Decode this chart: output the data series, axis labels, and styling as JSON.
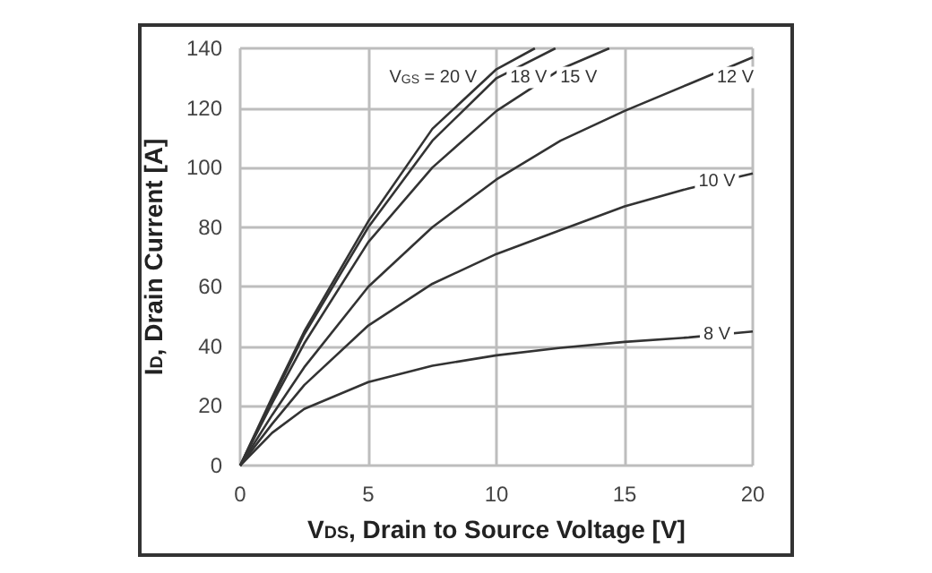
{
  "chart_data": {
    "type": "line",
    "xlabel": "V$_{DS}$, Drain to Source Voltage [V]",
    "ylabel": "I$_{D}$, Drain Current [A]",
    "xlim": [
      0,
      20
    ],
    "ylim": [
      0,
      140
    ],
    "xticks": [
      0,
      5,
      10,
      15,
      20
    ],
    "yticks": [
      0,
      20,
      40,
      60,
      80,
      100,
      120,
      140
    ],
    "grid": true,
    "marker": "none",
    "line_style": "solid",
    "series": [
      {
        "name": "V$_{GS}$ = 20 V",
        "color": "#333333",
        "x": [
          0,
          1.25,
          2.5,
          5,
          7.5,
          10,
          11.5
        ],
        "values": [
          0,
          23,
          45,
          82,
          113,
          133,
          140
        ]
      },
      {
        "name": "18 V",
        "color": "#333333",
        "x": [
          0,
          1.25,
          2.5,
          5,
          7.5,
          10,
          12.3
        ],
        "values": [
          0,
          22,
          44,
          80,
          109,
          130,
          140
        ]
      },
      {
        "name": "15 V",
        "color": "#333333",
        "x": [
          0,
          1.25,
          2.5,
          5,
          7.5,
          10,
          12.5,
          14.4
        ],
        "values": [
          0,
          21,
          41,
          75,
          100,
          119,
          133,
          140
        ]
      },
      {
        "name": "12 V",
        "color": "#333333",
        "x": [
          0,
          1.25,
          2.5,
          5,
          7.5,
          10,
          12.5,
          15,
          17.5,
          20
        ],
        "values": [
          0,
          17,
          33,
          60,
          80,
          96,
          109,
          119,
          128,
          137
        ]
      },
      {
        "name": "10 V",
        "color": "#333333",
        "x": [
          0,
          1.25,
          2.5,
          5,
          7.5,
          10,
          12.5,
          15,
          17.5,
          20
        ],
        "values": [
          0,
          14,
          27,
          47,
          61,
          71,
          79,
          87,
          93,
          98
        ]
      },
      {
        "name": "8 V",
        "color": "#333333",
        "x": [
          0,
          1.25,
          2.5,
          5,
          7.5,
          10,
          12.5,
          15,
          17.5,
          20
        ],
        "values": [
          0,
          11,
          19,
          28,
          33.5,
          37,
          39.5,
          41.5,
          43,
          45
        ]
      }
    ]
  }
}
